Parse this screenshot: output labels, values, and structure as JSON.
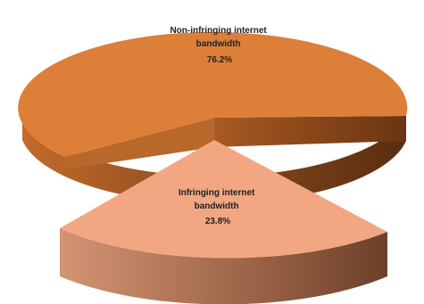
{
  "chart_data": {
    "type": "pie",
    "style": "3d-exploded",
    "series": [
      {
        "label_line1": "Non-infringing internet",
        "label_line2": "bandwidth",
        "value_label": "76.2%",
        "value": 76.2,
        "color": "#dd7f38",
        "side_color": "#7a3f18"
      },
      {
        "label_line1": "Infringing internet",
        "label_line2": "bandwidth",
        "value_label": "23.8%",
        "value": 23.8,
        "color": "#f2a782",
        "side_color": "#9a6246"
      }
    ]
  }
}
